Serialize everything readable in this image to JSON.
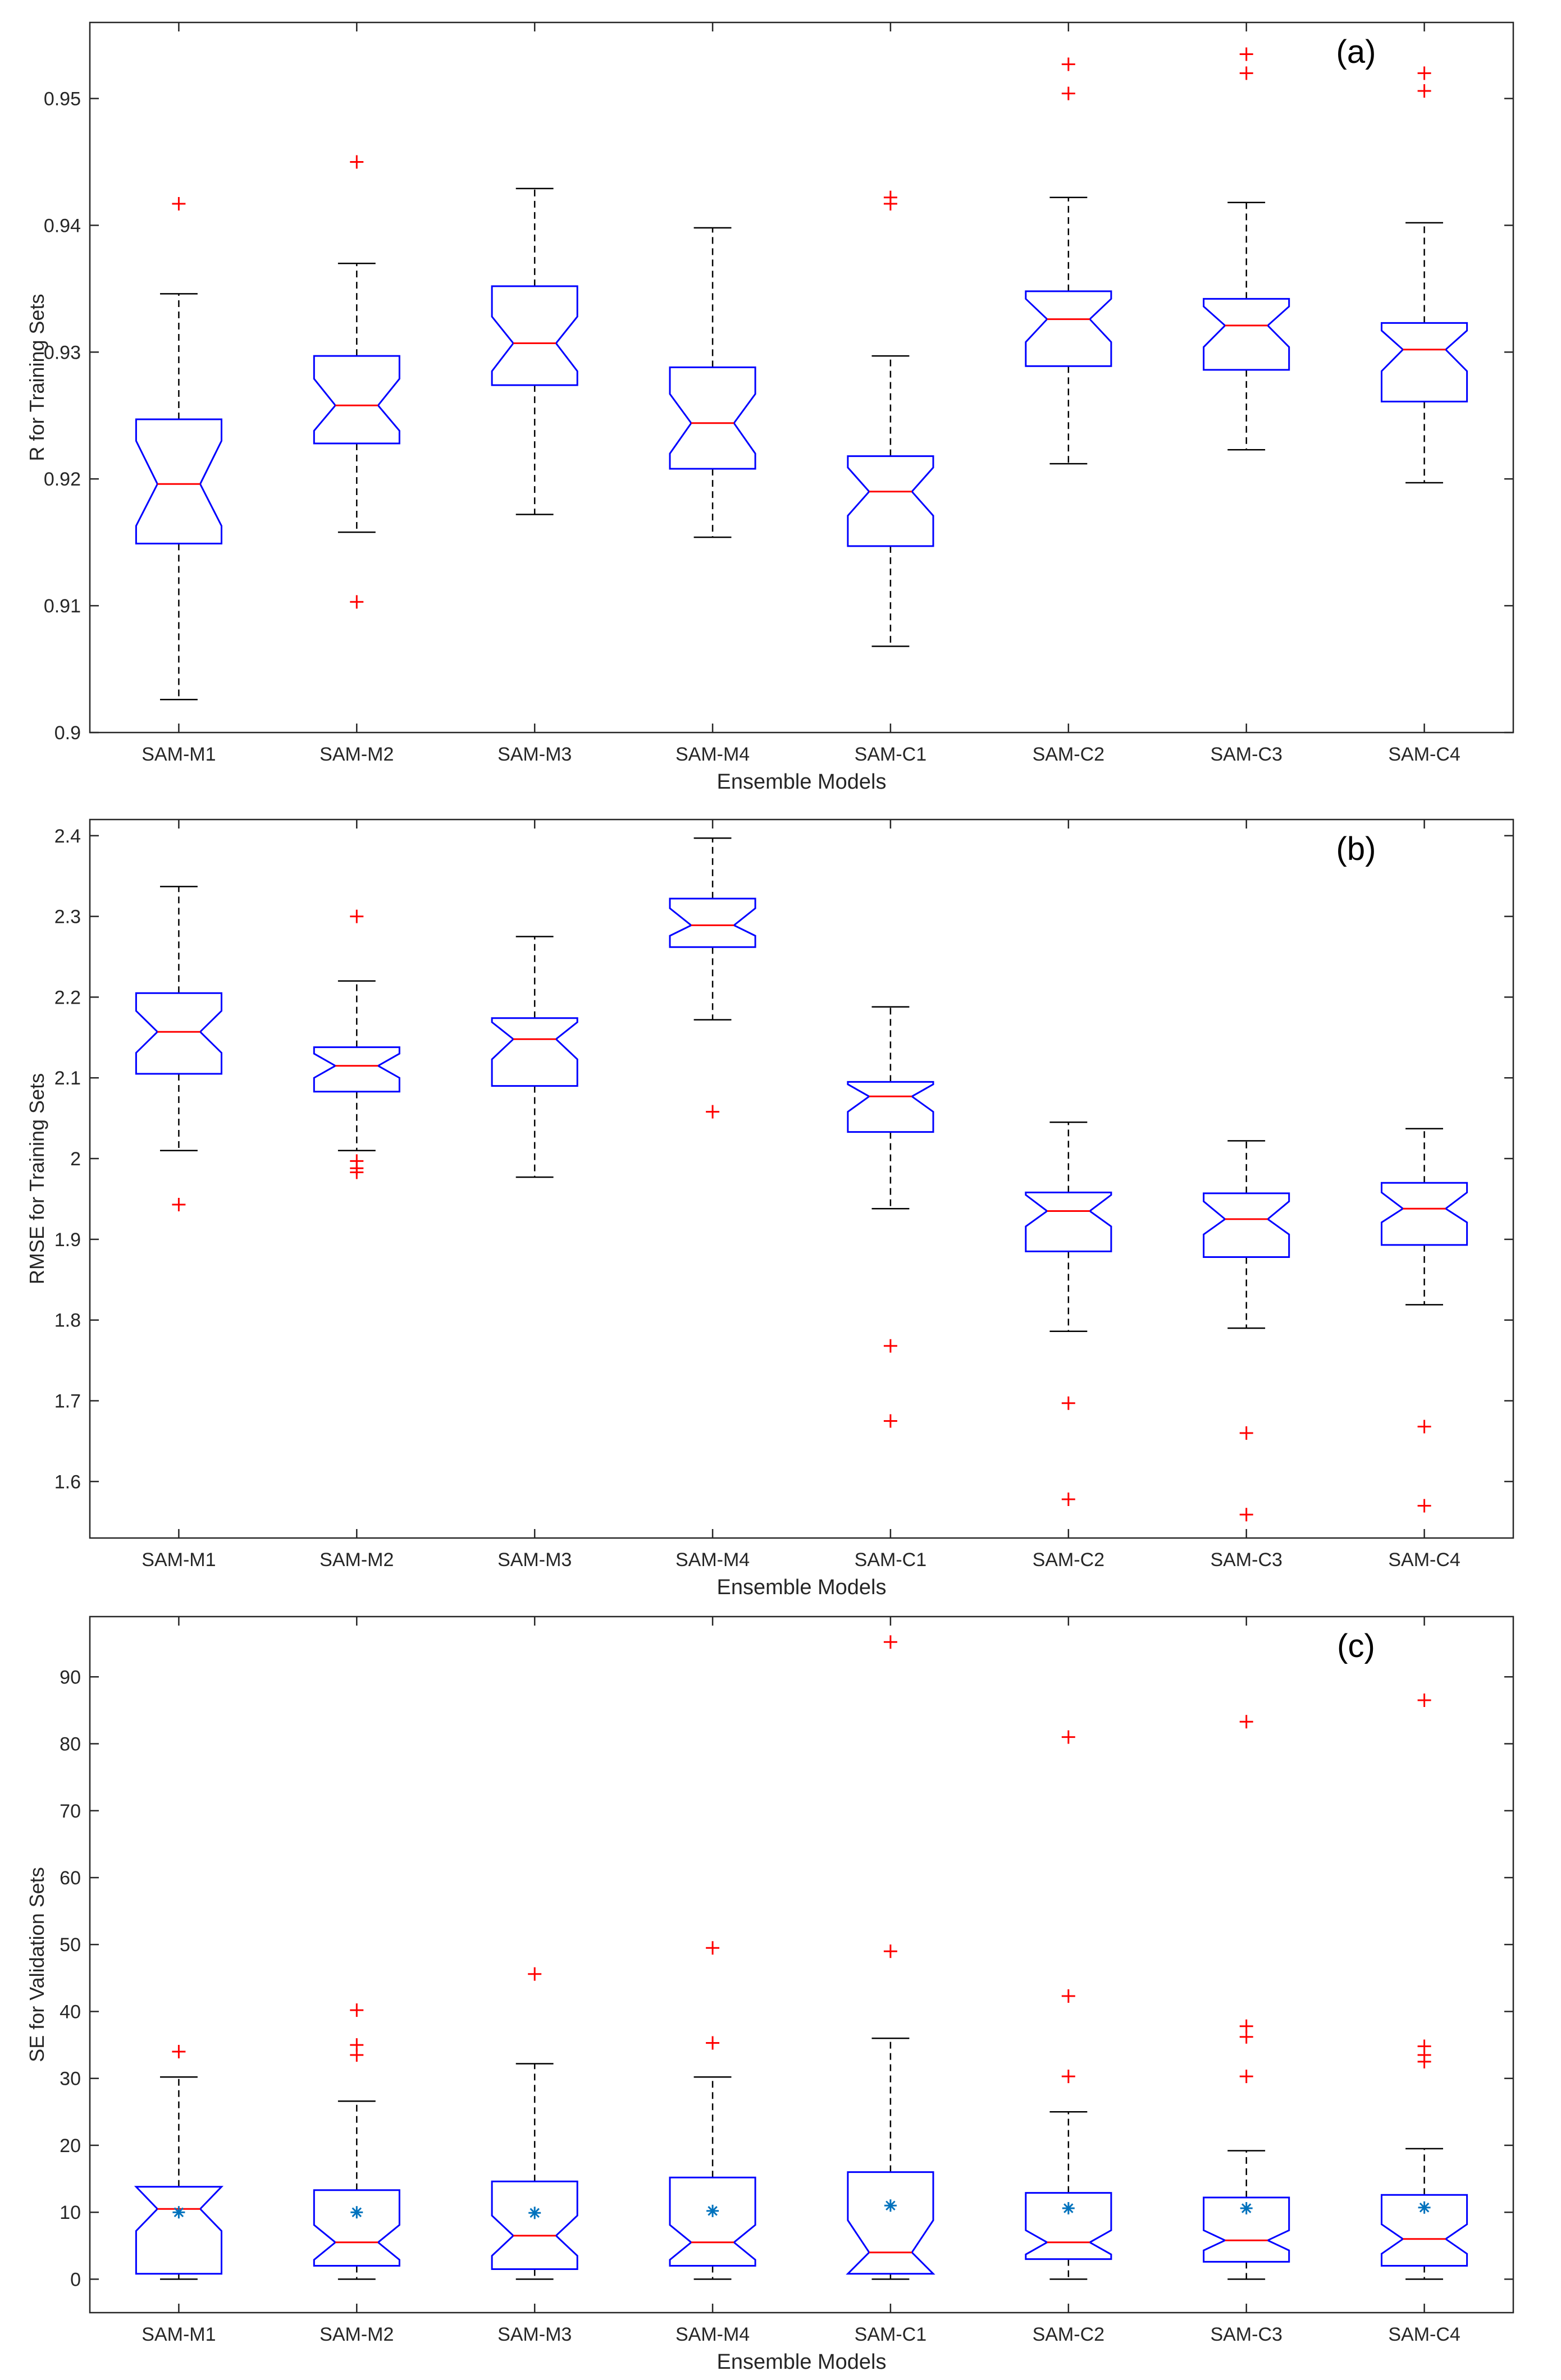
{
  "chart_data": [
    {
      "type": "box",
      "panel_label": "(a)",
      "xlabel": "Ensemble Models",
      "ylabel": "R for Training Sets",
      "ylim": [
        0.9,
        0.956
      ],
      "yticks": [
        0.9,
        0.91,
        0.92,
        0.93,
        0.94,
        0.95
      ],
      "ytick_labels": [
        "0.9",
        "0.91",
        "0.92",
        "0.93",
        "0.94",
        "0.95"
      ],
      "notched": true,
      "categories": [
        "SAM-M1",
        "SAM-M2",
        "SAM-M3",
        "SAM-M4",
        "SAM-C1",
        "SAM-C2",
        "SAM-C3",
        "SAM-C4"
      ],
      "boxes": [
        {
          "whisker_low": 0.9026,
          "q1": 0.9149,
          "median": 0.9196,
          "q3": 0.9247,
          "whisker_high": 0.9346,
          "notch_low": 0.9163,
          "notch_high": 0.923,
          "outliers": [
            0.9417
          ]
        },
        {
          "whisker_low": 0.9158,
          "q1": 0.9228,
          "median": 0.9258,
          "q3": 0.9297,
          "whisker_high": 0.937,
          "notch_low": 0.9238,
          "notch_high": 0.9279,
          "outliers": [
            0.945,
            0.9103
          ]
        },
        {
          "whisker_low": 0.9172,
          "q1": 0.9274,
          "median": 0.9307,
          "q3": 0.9352,
          "whisker_high": 0.9429,
          "notch_low": 0.9285,
          "notch_high": 0.9328,
          "outliers": []
        },
        {
          "whisker_low": 0.9154,
          "q1": 0.9208,
          "median": 0.9244,
          "q3": 0.9288,
          "whisker_high": 0.9398,
          "notch_low": 0.922,
          "notch_high": 0.9267,
          "outliers": []
        },
        {
          "whisker_low": 0.9068,
          "q1": 0.9147,
          "median": 0.919,
          "q3": 0.9218,
          "whisker_high": 0.9297,
          "notch_low": 0.9171,
          "notch_high": 0.9209,
          "outliers": [
            0.9422,
            0.9417
          ]
        },
        {
          "whisker_low": 0.9212,
          "q1": 0.9289,
          "median": 0.9326,
          "q3": 0.9348,
          "whisker_high": 0.9422,
          "notch_low": 0.9308,
          "notch_high": 0.9342,
          "outliers": [
            0.9527,
            0.9504
          ]
        },
        {
          "whisker_low": 0.9223,
          "q1": 0.9286,
          "median": 0.9321,
          "q3": 0.9342,
          "whisker_high": 0.9418,
          "notch_low": 0.9304,
          "notch_high": 0.9336,
          "outliers": [
            0.9535,
            0.952
          ]
        },
        {
          "whisker_low": 0.9197,
          "q1": 0.9261,
          "median": 0.9302,
          "q3": 0.9323,
          "whisker_high": 0.9402,
          "notch_low": 0.9285,
          "notch_high": 0.9317,
          "outliers": [
            0.952,
            0.9506
          ]
        }
      ]
    },
    {
      "type": "box",
      "panel_label": "(b)",
      "xlabel": "Ensemble Models",
      "ylabel": "RMSE for Training Sets",
      "ylim": [
        1.53,
        2.42
      ],
      "yticks": [
        1.6,
        1.7,
        1.8,
        1.9,
        2.0,
        2.1,
        2.2,
        2.3,
        2.4
      ],
      "ytick_labels": [
        "1.6",
        "1.7",
        "1.8",
        "1.9",
        "2",
        "2.1",
        "2.2",
        "2.3",
        "2.4"
      ],
      "notched": true,
      "categories": [
        "SAM-M1",
        "SAM-M2",
        "SAM-M3",
        "SAM-M4",
        "SAM-C1",
        "SAM-C2",
        "SAM-C3",
        "SAM-C4"
      ],
      "boxes": [
        {
          "whisker_low": 2.01,
          "q1": 2.105,
          "median": 2.157,
          "q3": 2.205,
          "whisker_high": 2.337,
          "notch_low": 2.131,
          "notch_high": 2.183,
          "outliers": [
            1.943
          ]
        },
        {
          "whisker_low": 2.01,
          "q1": 2.083,
          "median": 2.115,
          "q3": 2.138,
          "whisker_high": 2.22,
          "notch_low": 2.1,
          "notch_high": 2.13,
          "outliers": [
            2.3,
            1.997,
            1.988,
            1.983
          ]
        },
        {
          "whisker_low": 1.977,
          "q1": 2.09,
          "median": 2.148,
          "q3": 2.174,
          "whisker_high": 2.275,
          "notch_low": 2.123,
          "notch_high": 2.169,
          "outliers": []
        },
        {
          "whisker_low": 2.172,
          "q1": 2.262,
          "median": 2.289,
          "q3": 2.322,
          "whisker_high": 2.397,
          "notch_low": 2.276,
          "notch_high": 2.31,
          "outliers": [
            2.058
          ]
        },
        {
          "whisker_low": 1.938,
          "q1": 2.033,
          "median": 2.077,
          "q3": 2.095,
          "whisker_high": 2.188,
          "notch_low": 2.058,
          "notch_high": 2.092,
          "outliers": [
            1.768,
            1.675
          ]
        },
        {
          "whisker_low": 1.786,
          "q1": 1.885,
          "median": 1.935,
          "q3": 1.958,
          "whisker_high": 2.045,
          "notch_low": 1.916,
          "notch_high": 1.955,
          "outliers": [
            1.697,
            1.578
          ]
        },
        {
          "whisker_low": 1.79,
          "q1": 1.878,
          "median": 1.925,
          "q3": 1.957,
          "whisker_high": 2.022,
          "notch_low": 1.906,
          "notch_high": 1.947,
          "outliers": [
            1.66,
            1.559
          ]
        },
        {
          "whisker_low": 1.819,
          "q1": 1.893,
          "median": 1.938,
          "q3": 1.97,
          "whisker_high": 2.037,
          "notch_low": 1.921,
          "notch_high": 1.958,
          "outliers": [
            1.668,
            1.57
          ]
        }
      ]
    },
    {
      "type": "box",
      "panel_label": "(c)",
      "xlabel": "Ensemble Models",
      "ylabel": "SE for Validation Sets",
      "ylim": [
        -5,
        99
      ],
      "yticks": [
        0,
        10,
        20,
        30,
        40,
        50,
        60,
        70,
        80,
        90
      ],
      "ytick_labels": [
        "0",
        "10",
        "20",
        "30",
        "40",
        "50",
        "60",
        "70",
        "80",
        "90"
      ],
      "notched": true,
      "categories": [
        "SAM-M1",
        "SAM-M2",
        "SAM-M3",
        "SAM-M4",
        "SAM-C1",
        "SAM-C2",
        "SAM-C3",
        "SAM-C4"
      ],
      "boxes": [
        {
          "whisker_low": 0.0,
          "q1": 0.8,
          "median": 10.5,
          "q3": 13.8,
          "whisker_high": 30.2,
          "notch_low": 7.2,
          "notch_high": 13.8,
          "mean": 10.0,
          "outliers": [
            34.0
          ]
        },
        {
          "whisker_low": 0.0,
          "q1": 2.0,
          "median": 5.5,
          "q3": 13.3,
          "whisker_high": 26.6,
          "notch_low": 2.9,
          "notch_high": 8.1,
          "mean": 10.0,
          "outliers": [
            40.2,
            35.0,
            33.5
          ]
        },
        {
          "whisker_low": 0.0,
          "q1": 1.5,
          "median": 6.5,
          "q3": 14.6,
          "whisker_high": 32.2,
          "notch_low": 3.5,
          "notch_high": 9.5,
          "mean": 9.9,
          "outliers": [
            45.6
          ]
        },
        {
          "whisker_low": 0.0,
          "q1": 2.0,
          "median": 5.5,
          "q3": 15.2,
          "whisker_high": 30.2,
          "notch_low": 2.9,
          "notch_high": 8.1,
          "mean": 10.2,
          "outliers": [
            49.5,
            35.3
          ]
        },
        {
          "whisker_low": 0.0,
          "q1": 0.8,
          "median": 4.0,
          "q3": 16.0,
          "whisker_high": 36.0,
          "notch_low": 0.0,
          "notch_high": 8.8,
          "mean": 11.0,
          "outliers": [
            95.2,
            49.0
          ]
        },
        {
          "whisker_low": 0.0,
          "q1": 3.0,
          "median": 5.5,
          "q3": 12.9,
          "whisker_high": 25.0,
          "notch_low": 3.7,
          "notch_high": 7.3,
          "mean": 10.6,
          "outliers": [
            81.0,
            42.3,
            30.3
          ]
        },
        {
          "whisker_low": 0.0,
          "q1": 2.6,
          "median": 5.8,
          "q3": 12.2,
          "whisker_high": 19.2,
          "notch_low": 4.3,
          "notch_high": 7.3,
          "mean": 10.6,
          "outliers": [
            83.3,
            37.8,
            36.2,
            30.3
          ]
        },
        {
          "whisker_low": 0.0,
          "q1": 2.0,
          "median": 6.0,
          "q3": 12.6,
          "whisker_high": 19.5,
          "notch_low": 3.8,
          "notch_high": 8.2,
          "mean": 10.7,
          "outliers": [
            86.5,
            34.8,
            33.5,
            32.5
          ]
        }
      ]
    }
  ],
  "colors": {
    "box": "#0000ff",
    "median": "#ff0000",
    "outlier": "#ff0000",
    "whisker": "#000000",
    "mean_marker": "#0072bd",
    "axis": "#262626"
  }
}
